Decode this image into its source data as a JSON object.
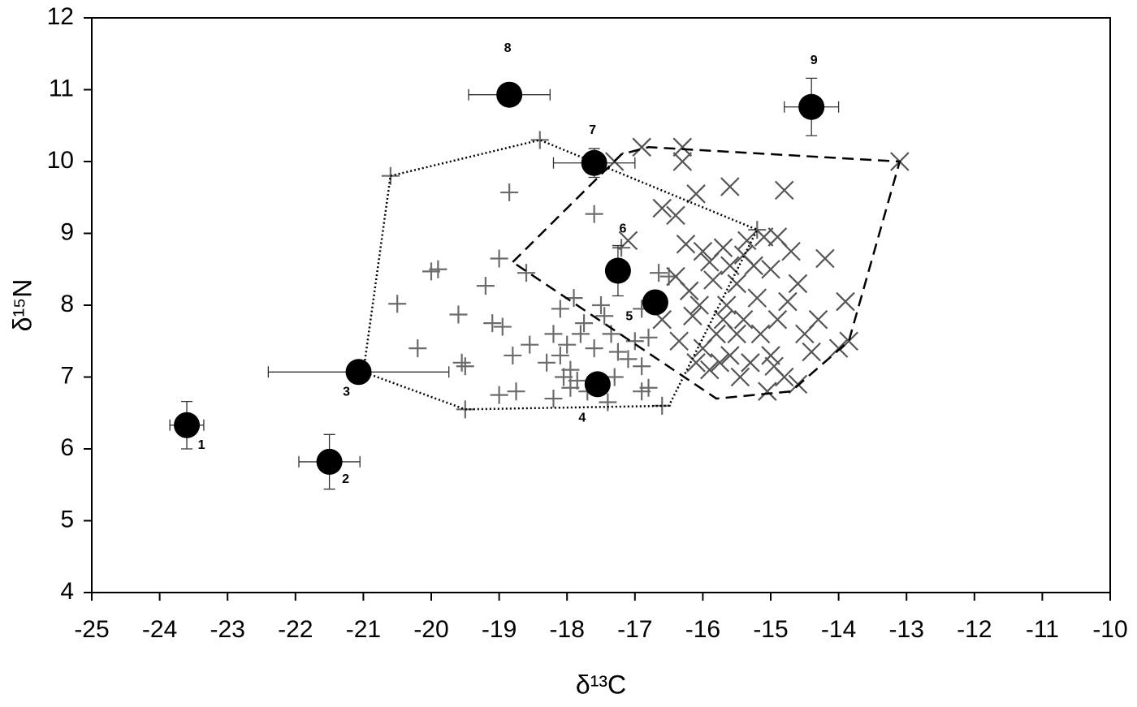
{
  "chart_data": {
    "type": "scatter",
    "xlabel": "δ¹³C",
    "ylabel": "δ¹⁵N",
    "xlim": [
      -25,
      -10
    ],
    "ylim": [
      4,
      12
    ],
    "xticks": [
      -25,
      -24,
      -23,
      -22,
      -21,
      -20,
      -19,
      -18,
      -17,
      -16,
      -15,
      -14,
      -13,
      -12,
      -11,
      -10
    ],
    "yticks": [
      4,
      5,
      6,
      7,
      8,
      9,
      10,
      11,
      12
    ],
    "grid": false,
    "series": [
      {
        "marker": "plus",
        "color": "#6b6b6b",
        "x": [
          -20.6,
          -18.4,
          -18.85,
          -17.6,
          -19.9,
          -20.0,
          -19.0,
          -18.6,
          -19.2,
          -20.5,
          -19.6,
          -19.1,
          -18.95,
          -18.8,
          -18.55,
          -20.2,
          -19.55,
          -19.5,
          -19.0,
          -18.75,
          -19.5,
          -18.2,
          -18.1,
          -17.9,
          -17.75,
          -18.0,
          -18.1,
          -17.95,
          -17.85,
          -17.7,
          -17.3,
          -17.1,
          -16.9,
          -16.8,
          -17.0,
          -17.35,
          -17.5,
          -17.2,
          -16.65,
          -16.5,
          -16.8,
          -16.6,
          -17.6,
          -18.3,
          -18.2,
          -17.45,
          -16.9,
          -17.8,
          -18.05,
          -17.25,
          -17.95,
          -16.9,
          -15.2,
          -17.4
        ],
        "y": [
          9.8,
          10.3,
          9.57,
          9.27,
          8.5,
          8.47,
          8.65,
          8.45,
          8.27,
          8.02,
          7.87,
          7.75,
          7.7,
          7.3,
          7.45,
          7.4,
          7.2,
          7.15,
          6.75,
          6.8,
          6.55,
          6.7,
          7.95,
          8.1,
          7.75,
          7.45,
          7.3,
          7.1,
          6.95,
          6.8,
          7.0,
          7.25,
          7.15,
          6.85,
          7.5,
          7.6,
          8.0,
          8.8,
          8.45,
          8.4,
          7.55,
          6.6,
          7.4,
          7.2,
          7.6,
          7.85,
          6.8,
          7.6,
          7.0,
          7.35,
          6.85,
          7.95,
          9.05,
          6.65
        ]
      },
      {
        "marker": "x",
        "color": "#555555",
        "x": [
          -16.9,
          -16.3,
          -16.3,
          -17.3,
          -13.1,
          -15.6,
          -14.8,
          -16.1,
          -16.6,
          -16.4,
          -17.1,
          -14.2,
          -15.1,
          -15.7,
          -15.9,
          -14.9,
          -15.4,
          -15.0,
          -15.5,
          -15.85,
          -16.2,
          -16.4,
          -16.05,
          -15.65,
          -15.2,
          -14.6,
          -13.9,
          -14.9,
          -15.4,
          -15.8,
          -16.0,
          -16.35,
          -16.6,
          -14.5,
          -14.0,
          -13.85,
          -14.4,
          -15.0,
          -15.3,
          -15.6,
          -15.9,
          -14.8,
          -15.05,
          -14.6,
          -15.5,
          -15.7,
          -16.15,
          -15.25,
          -14.7,
          -15.6,
          -16.0,
          -16.25,
          -15.35,
          -14.75,
          -14.3,
          -15.45,
          -16.1,
          -15.15,
          -14.95,
          -15.75
        ],
        "y": [
          10.2,
          10.2,
          10.0,
          10.0,
          10.0,
          9.65,
          9.6,
          9.55,
          9.35,
          9.25,
          8.9,
          8.65,
          8.95,
          8.8,
          8.6,
          8.95,
          8.7,
          8.5,
          8.3,
          8.35,
          8.2,
          8.4,
          8.0,
          8.0,
          8.1,
          8.3,
          8.05,
          7.8,
          7.8,
          7.6,
          7.4,
          7.5,
          7.8,
          7.6,
          7.4,
          7.5,
          7.35,
          7.3,
          7.2,
          7.3,
          7.1,
          7.0,
          6.8,
          6.9,
          7.6,
          7.8,
          7.85,
          8.55,
          8.75,
          8.55,
          8.75,
          8.85,
          8.9,
          8.05,
          7.8,
          7.0,
          7.2,
          7.6,
          7.15,
          7.2
        ]
      },
      {
        "marker": "hull",
        "line_style": "dotted",
        "color": "#000000",
        "x": [
          -20.6,
          -18.4,
          -15.2,
          -16.5,
          -19.5,
          -21.0,
          -20.6
        ],
        "y": [
          9.8,
          10.3,
          9.05,
          6.6,
          6.55,
          7.07,
          9.8
        ]
      },
      {
        "marker": "hull",
        "line_style": "dashed",
        "color": "#000000",
        "x": [
          -18.8,
          -17.2,
          -16.8,
          -13.1,
          -13.85,
          -14.7,
          -15.8,
          -18.8
        ],
        "y": [
          8.6,
          10.1,
          10.2,
          10.0,
          7.5,
          6.8,
          6.7,
          8.6
        ]
      },
      {
        "marker": "circle",
        "color": "#000000",
        "x": [
          -23.6,
          -21.5,
          -21.07,
          -17.55,
          -16.7,
          -17.25,
          -17.6,
          -18.85,
          -14.4
        ],
        "y": [
          6.33,
          5.82,
          7.07,
          6.9,
          8.04,
          8.48,
          9.98,
          10.93,
          10.76
        ],
        "x_error": [
          0.25,
          0.45,
          1.33,
          0.1,
          0.1,
          0.1,
          0.6,
          0.6,
          0.4
        ],
        "y_error": [
          0.33,
          0.38,
          0.05,
          0.1,
          0.1,
          0.35,
          0.2,
          0.05,
          0.4
        ],
        "labels": [
          "1",
          "2",
          "3",
          "4",
          "5",
          "6",
          "7",
          "8",
          "9"
        ]
      }
    ]
  }
}
